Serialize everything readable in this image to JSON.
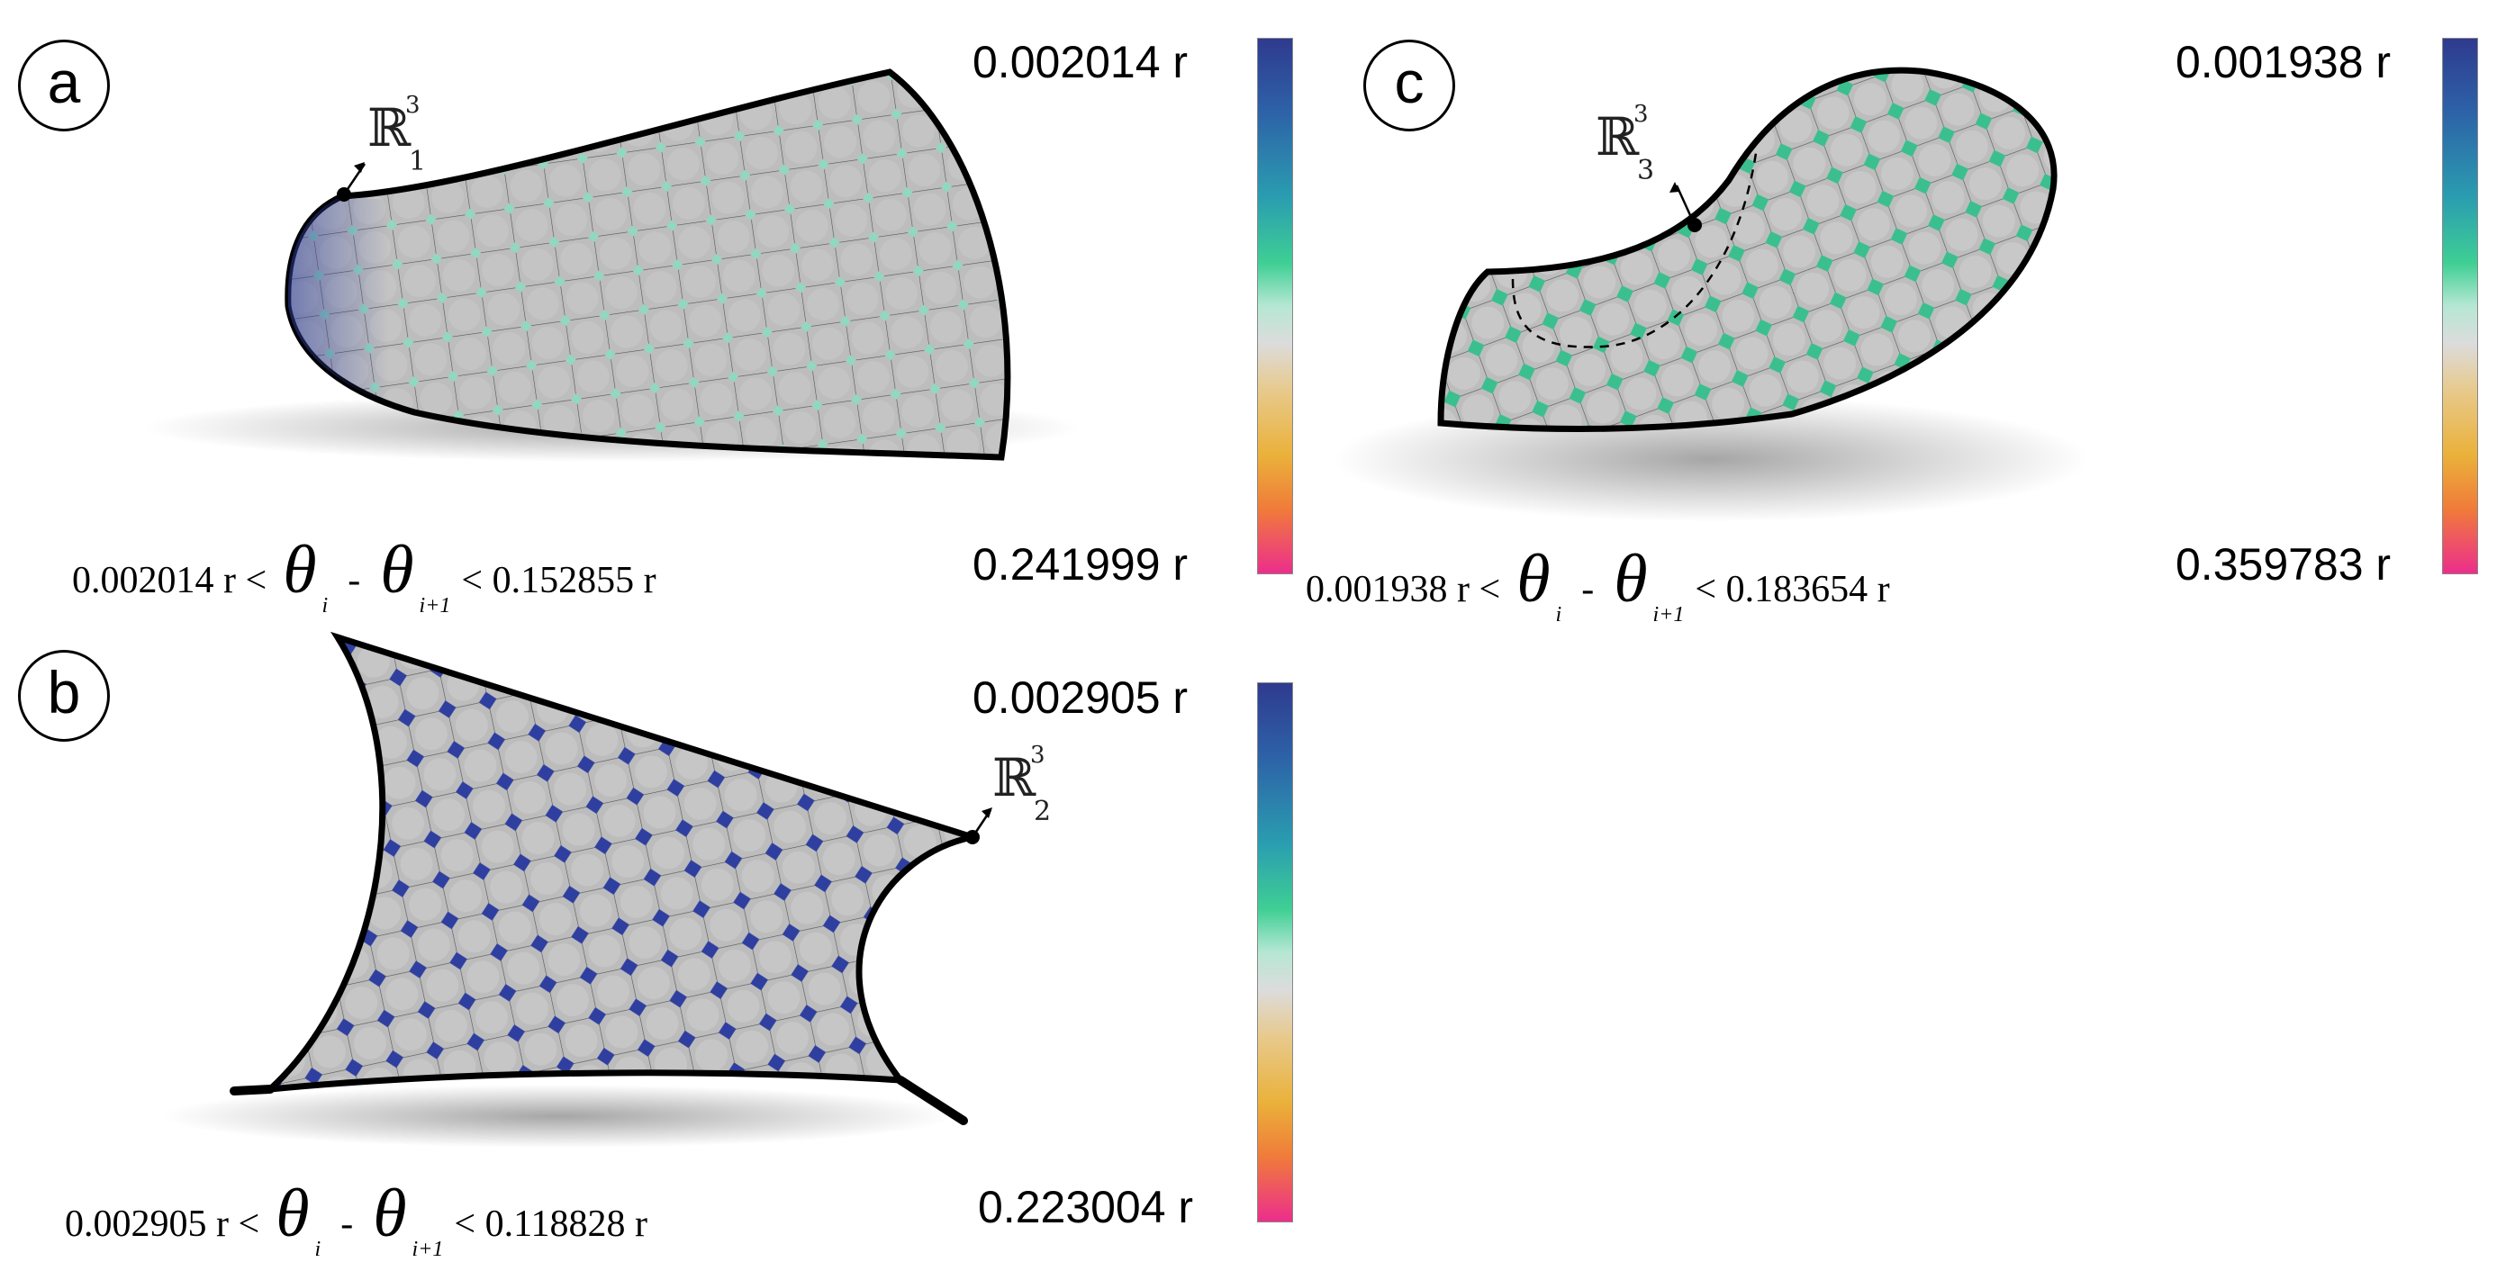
{
  "panels": [
    {
      "id": "a",
      "label": "a",
      "scale_top": "0.002014 r",
      "scale_bottom": "0.241999 r",
      "formula": {
        "left": "0.002014 r <",
        "theta": "θ",
        "sub_i": "i",
        "minus": "-",
        "sub_i1": "i+1",
        "right": "< 0.152855 r"
      },
      "space": {
        "symbol": "ℝ",
        "sup": "3",
        "sub": "1"
      }
    },
    {
      "id": "b",
      "label": "b",
      "scale_top": "0.002905 r",
      "scale_bottom": "0.223004 r",
      "formula": {
        "left": "0.002905 r <",
        "theta": "θ",
        "sub_i": "i",
        "minus": "-",
        "sub_i1": "i+1",
        "right": "< 0.118828 r"
      },
      "space": {
        "symbol": "ℝ",
        "sup": "3",
        "sub": "2"
      }
    },
    {
      "id": "c",
      "label": "c",
      "scale_top": "0.001938 r",
      "scale_bottom": "0.359783 r",
      "formula": {
        "left": "0.001938 r <",
        "theta": "θ",
        "sub_i": "i",
        "minus": "-",
        "sub_i1": "i+1",
        "right": "< 0.183654 r"
      },
      "space": {
        "symbol": "ℝ",
        "sup": "3",
        "sub": "3"
      }
    }
  ],
  "colormap": [
    "#2f3a8f",
    "#2a9eb0",
    "#3fcf94",
    "#dcdcdc",
    "#eab13a",
    "#ec2e8c"
  ]
}
